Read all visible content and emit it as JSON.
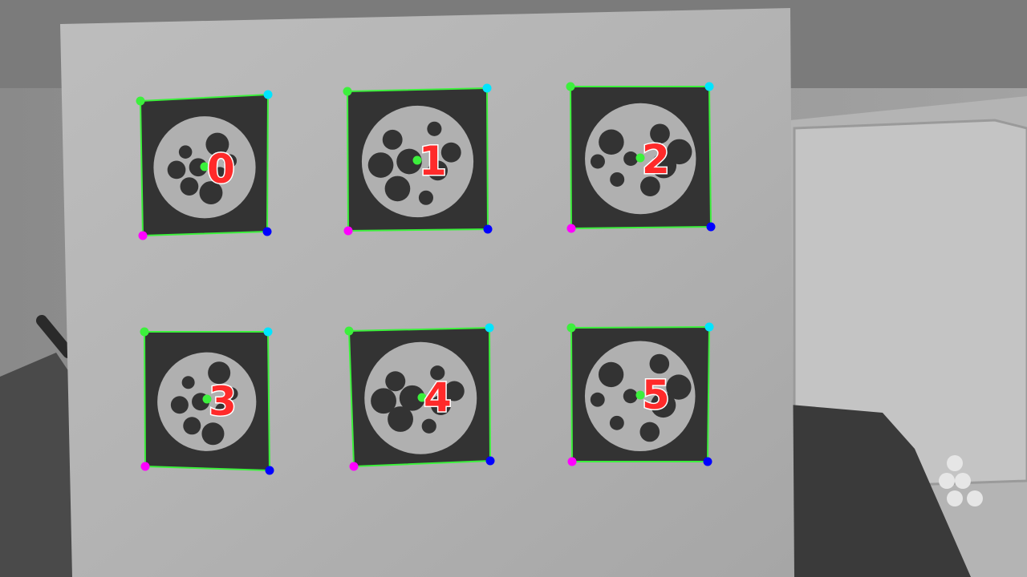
{
  "colors": {
    "outline": "#3cf03c",
    "corner_top_left": "#3cf03c",
    "corner_top_right": "#00e5ff",
    "corner_bottom_right": "#0000ff",
    "corner_bottom_left": "#ff00ff",
    "center_dot": "#3cf03c",
    "id_label": "#ff2a2a"
  },
  "markers": [
    {
      "id": "0"
    },
    {
      "id": "1"
    },
    {
      "id": "2"
    },
    {
      "id": "3"
    },
    {
      "id": "4"
    },
    {
      "id": "5"
    }
  ]
}
